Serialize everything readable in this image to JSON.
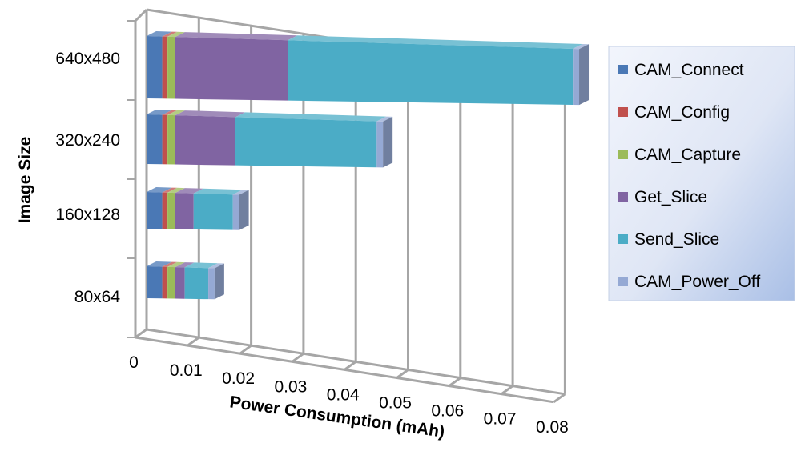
{
  "chart_data": {
    "type": "bar",
    "orientation": "horizontal",
    "stacked": true,
    "style": "3d",
    "title": "",
    "xlabel": "Power Consumption (mAh)",
    "ylabel": "Image Size",
    "xlim": [
      0,
      0.08
    ],
    "x_ticks": [
      "0",
      "0.01",
      "0.02",
      "0.03",
      "0.04",
      "0.05",
      "0.06",
      "0.07",
      "0.08"
    ],
    "categories": [
      "640x480",
      "320x240",
      "160x128",
      "80x64"
    ],
    "grid": true,
    "legend_position": "right",
    "series": [
      {
        "name": "CAM_Connect",
        "color": "#4a78b5",
        "values": [
          0.003,
          0.003,
          0.003,
          0.003
        ]
      },
      {
        "name": "CAM_Config",
        "color": "#c0504d",
        "values": [
          0.001,
          0.001,
          0.001,
          0.001
        ]
      },
      {
        "name": "CAM_Capture",
        "color": "#9bbb59",
        "values": [
          0.0015,
          0.0015,
          0.0015,
          0.0015
        ]
      },
      {
        "name": "Get_Slice",
        "color": "#8064a2",
        "values": [
          0.0215,
          0.0115,
          0.0035,
          0.0018
        ]
      },
      {
        "name": "Send_Slice",
        "color": "#4bacc6",
        "values": [
          0.0545,
          0.027,
          0.0075,
          0.0045
        ]
      },
      {
        "name": "CAM_Power_Off",
        "color": "#95a9d4",
        "values": [
          0.0012,
          0.0012,
          0.0012,
          0.0012
        ]
      }
    ]
  }
}
